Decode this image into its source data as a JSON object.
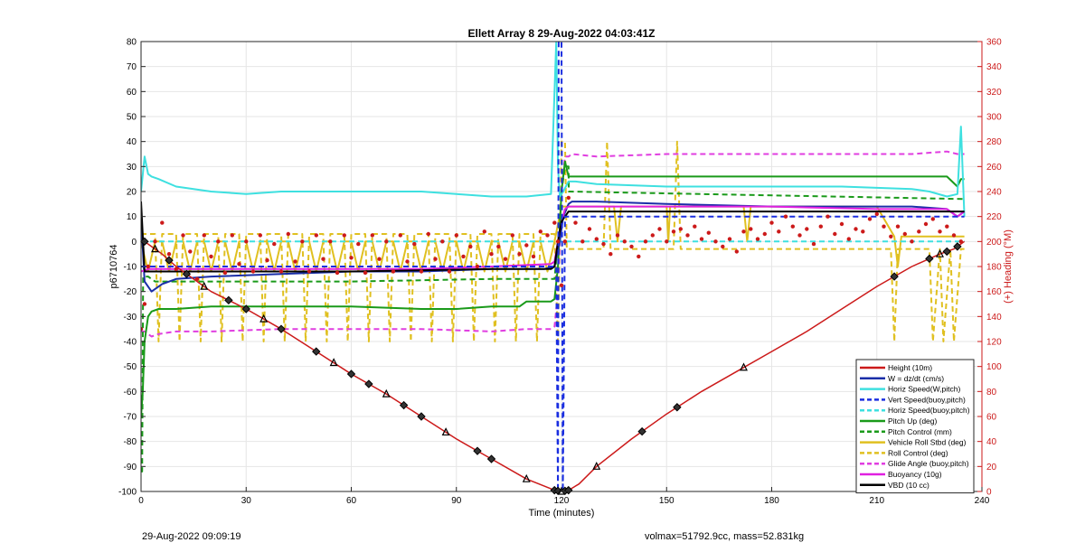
{
  "footer": {
    "timestamp": "29-Aug-2022 09:09:19",
    "summary": "volmax=51792.9cc, mass=52.831kg"
  },
  "chart_data": {
    "type": "line",
    "title": "Ellett Array 8 29-Aug-2022 04:03:41Z",
    "xlabel": "Time (minutes)",
    "ylabel": "p6710764",
    "ylabel_right": "(+) Heading (°M)",
    "xlim": [
      0,
      240
    ],
    "ylim": [
      -100,
      80
    ],
    "ylim_right": [
      0,
      360
    ],
    "xticks": [
      0,
      30,
      60,
      90,
      120,
      150,
      180,
      210,
      240
    ],
    "yticks": [
      -100,
      -90,
      -80,
      -70,
      -60,
      -50,
      -40,
      -30,
      -20,
      -10,
      0,
      10,
      20,
      30,
      40,
      50,
      60,
      70,
      80
    ],
    "yticks_right": [
      0,
      20,
      40,
      60,
      80,
      100,
      120,
      140,
      160,
      180,
      200,
      220,
      240,
      260,
      280,
      300,
      320,
      340,
      360
    ],
    "legend_location": "bottom-right",
    "colors": {
      "axis_left": "#000000",
      "axis_right": "#cc1a1a"
    },
    "series": [
      {
        "name": "Height (10m)",
        "color": "#cc1a1a",
        "style": "solid",
        "x": [
          0,
          1,
          3,
          6,
          10,
          20,
          30,
          40,
          50,
          60,
          70,
          80,
          90,
          100,
          110,
          118,
          120,
          122,
          125,
          130,
          140,
          150,
          160,
          170,
          180,
          190,
          200,
          210,
          220,
          228,
          232,
          235
        ],
        "y": [
          0,
          0,
          -2,
          -5,
          -10,
          -20,
          -27,
          -35,
          -44,
          -53,
          -61,
          -70,
          -79,
          -87,
          -95,
          -99.5,
          -100,
          -99.5,
          -97,
          -90,
          -79,
          -69,
          -60,
          -52,
          -44,
          -36,
          -27,
          -18,
          -10,
          -5,
          -3,
          0
        ]
      },
      {
        "name": "W = dz/dt (cm/s)",
        "color": "#1a2ea8",
        "style": "solid",
        "x": [
          0,
          1,
          3,
          6,
          10,
          20,
          40,
          60,
          80,
          100,
          115,
          118,
          119.5,
          120.5,
          122,
          123,
          130,
          150,
          180,
          200,
          220,
          230,
          233,
          235
        ],
        "y": [
          10,
          -16,
          -20,
          -17,
          -15,
          -14,
          -13,
          -12,
          -12,
          -11,
          -11,
          -10,
          0,
          10,
          15,
          16,
          16,
          15,
          14,
          14,
          14,
          13,
          10,
          12
        ]
      },
      {
        "name": "Horiz Speed(W,pitch)",
        "color": "#3ee0e0",
        "style": "solid",
        "x": [
          0,
          1,
          2,
          3,
          5,
          10,
          20,
          30,
          40,
          60,
          80,
          90,
          100,
          110,
          117,
          118.5,
          119,
          119.5,
          120.5,
          122,
          124,
          130,
          150,
          180,
          200,
          220,
          225,
          230,
          233,
          234,
          235
        ],
        "y": [
          20,
          34,
          27,
          26,
          25,
          22,
          20,
          19,
          20,
          20,
          20,
          19,
          18,
          18,
          19,
          80,
          30,
          18,
          20,
          24,
          24,
          23,
          22,
          22,
          22,
          21,
          20,
          18,
          19,
          46,
          10
        ]
      },
      {
        "name": "Vert Speed(buoy,pitch)",
        "color": "#1a2ee0",
        "style": "dashed",
        "x": [
          0,
          118.5,
          119,
          119.2,
          120,
          120.4,
          121,
          235
        ],
        "y": [
          -10,
          -10,
          -100,
          80,
          80,
          -100,
          10,
          10
        ]
      },
      {
        "name": "Horiz Speed(buoy,pitch)",
        "color": "#3ee0e0",
        "style": "dashed",
        "x": [
          0,
          235
        ],
        "y": [
          0,
          0
        ]
      },
      {
        "name": "Pitch Up (deg)",
        "color": "#1a9a1a",
        "style": "solid",
        "x": [
          0,
          0.5,
          1,
          2,
          3,
          5,
          10,
          20,
          40,
          60,
          80,
          90,
          100,
          108,
          110,
          117,
          118,
          119,
          120,
          121,
          122,
          124,
          130,
          150,
          180,
          200,
          220,
          230,
          233,
          234,
          235
        ],
        "y": [
          -70,
          -60,
          -40,
          -30,
          -28,
          -27,
          -27,
          -26,
          -26,
          -26,
          -27,
          -27,
          -26,
          -26,
          -24,
          -24,
          -23,
          -10,
          20,
          32,
          26,
          26,
          26,
          26,
          26,
          26,
          26,
          26,
          22,
          25,
          25
        ]
      },
      {
        "name": "Pitch Control (mm)",
        "color": "#1a9a1a",
        "style": "dashed",
        "x": [
          0,
          0.3,
          0.6,
          2,
          4,
          6,
          60,
          100,
          117,
          118,
          119,
          120,
          121,
          122,
          122.1,
          235
        ],
        "y": [
          -92,
          -92,
          -14,
          -14,
          -16,
          -16,
          -16,
          -15,
          -15,
          -15,
          0,
          20,
          30,
          30,
          20,
          17
        ]
      },
      {
        "name": "Vehicle Roll Stbd (deg)",
        "color": "#e0c020",
        "style": "solid",
        "x": [
          0,
          2,
          4,
          6,
          8,
          10,
          12,
          14,
          16,
          18,
          20,
          22,
          24,
          26,
          28,
          30,
          32,
          34,
          36,
          38,
          40,
          42,
          44,
          46,
          48,
          50,
          52,
          54,
          56,
          58,
          60,
          62,
          64,
          66,
          68,
          70,
          72,
          74,
          76,
          78,
          80,
          82,
          84,
          86,
          88,
          90,
          92,
          94,
          96,
          98,
          100,
          102,
          104,
          106,
          108,
          110,
          112,
          114,
          116,
          118,
          120,
          122,
          122.5,
          135,
          136,
          137,
          138,
          150,
          150.5,
          151,
          151.5,
          160,
          171,
          172,
          173,
          174,
          185,
          210,
          215,
          216,
          217,
          235
        ],
        "y": [
          0,
          -12,
          0,
          0,
          -12,
          0,
          0,
          -12,
          0,
          0,
          -12,
          0,
          0,
          -12,
          0,
          0,
          -12,
          0,
          0,
          -12,
          0,
          0,
          -12,
          0,
          0,
          -12,
          0,
          0,
          -12,
          0,
          0,
          -12,
          0,
          0,
          -12,
          0,
          0,
          -12,
          0,
          0,
          -12,
          0,
          0,
          -12,
          0,
          0,
          -12,
          0,
          0,
          -12,
          0,
          0,
          -12,
          0,
          0,
          -12,
          0,
          0,
          -12,
          0,
          14,
          14,
          14,
          14,
          0,
          14,
          14,
          14,
          0,
          14,
          14,
          14,
          14,
          14,
          0,
          14,
          14,
          14,
          2,
          -10,
          2,
          2
        ]
      },
      {
        "name": "Roll Control (deg)",
        "color": "#e0c020",
        "style": "dashed",
        "x": [
          0,
          4,
          5,
          6,
          10,
          11,
          12,
          16,
          17,
          18,
          22,
          23,
          24,
          28,
          29,
          30,
          34,
          35,
          36,
          40,
          41,
          42,
          46,
          47,
          48,
          52,
          53,
          54,
          58,
          59,
          60,
          64,
          65,
          66,
          70,
          71,
          72,
          76,
          77,
          78,
          82,
          83,
          84,
          88,
          89,
          90,
          94,
          95,
          96,
          100,
          101,
          102,
          106,
          107,
          108,
          112,
          113,
          114,
          118,
          119,
          120,
          121,
          121.5,
          122,
          132,
          133,
          134,
          152,
          153,
          154,
          185,
          214,
          215,
          216,
          225,
          226,
          228,
          229,
          231,
          232,
          234,
          235
        ],
        "y": [
          3,
          3,
          -40,
          3,
          3,
          -40,
          3,
          3,
          -40,
          3,
          3,
          -40,
          3,
          3,
          -40,
          3,
          3,
          -40,
          3,
          3,
          -40,
          3,
          3,
          -40,
          3,
          3,
          -40,
          3,
          3,
          -40,
          3,
          3,
          -40,
          3,
          3,
          -40,
          3,
          3,
          -40,
          3,
          3,
          -40,
          3,
          3,
          -40,
          3,
          3,
          -40,
          3,
          3,
          -40,
          3,
          3,
          -40,
          3,
          3,
          -40,
          3,
          3,
          -40,
          40,
          40,
          -3,
          -3,
          -3,
          40,
          -3,
          -3,
          40,
          -3,
          -3,
          -3,
          -40,
          -3,
          -3,
          -40,
          -3,
          -40,
          -3,
          -40,
          -3,
          -3
        ]
      },
      {
        "name": "Glide Angle (buoy,pitch)",
        "color": "#e03ee0",
        "style": "dashed",
        "x": [
          0,
          1,
          3,
          5,
          10,
          20,
          40,
          60,
          80,
          100,
          110,
          117,
          118,
          119,
          120,
          121,
          122,
          123,
          130,
          150,
          180,
          200,
          220,
          230,
          233,
          235
        ],
        "y": [
          -36,
          -36,
          -38,
          -37,
          -36,
          -36,
          -35,
          -35,
          -35,
          -36,
          -35,
          -35,
          -34,
          -20,
          20,
          34,
          34,
          35,
          34,
          35,
          35,
          35,
          35,
          36,
          35,
          35
        ]
      },
      {
        "name": "Buoyancy (10g)",
        "color": "#e020e0",
        "style": "solid",
        "x": [
          0,
          2,
          10,
          40,
          60,
          80,
          100,
          117,
          118,
          119,
          120,
          121,
          122,
          130,
          150,
          180,
          210,
          230,
          233,
          235
        ],
        "y": [
          -12,
          -11,
          -11,
          -11,
          -11,
          -11,
          -10,
          -9,
          -8,
          0,
          8,
          13,
          14,
          14,
          14,
          14,
          13,
          13,
          10,
          12
        ]
      },
      {
        "name": "VBD (10 cc)",
        "color": "#000000",
        "style": "solid",
        "x": [
          0,
          1,
          2,
          10,
          60,
          100,
          117,
          118,
          119,
          120,
          121,
          122,
          130,
          180,
          232,
          233,
          235
        ],
        "y": [
          16,
          -12,
          -12,
          -12,
          -12,
          -11,
          -11,
          -10,
          0,
          8,
          10,
          12,
          12,
          12,
          12,
          12,
          12
        ]
      }
    ],
    "heading_series": {
      "name": "(+) Heading (°M)",
      "color": "#cc1a1a",
      "x": [
        0,
        1,
        2,
        4,
        6,
        8,
        10,
        12,
        14,
        16,
        18,
        20,
        22,
        24,
        26,
        28,
        30,
        32,
        34,
        36,
        38,
        40,
        42,
        44,
        46,
        48,
        50,
        52,
        54,
        56,
        58,
        60,
        62,
        64,
        66,
        68,
        70,
        72,
        74,
        76,
        78,
        80,
        82,
        84,
        86,
        88,
        90,
        92,
        94,
        96,
        98,
        100,
        102,
        104,
        106,
        108,
        110,
        112,
        114,
        116,
        118,
        119,
        120,
        121,
        122,
        124,
        126,
        128,
        130,
        132,
        134,
        136,
        138,
        140,
        142,
        144,
        146,
        148,
        150,
        152,
        154,
        156,
        158,
        160,
        162,
        164,
        166,
        168,
        170,
        172,
        174,
        176,
        178,
        180,
        182,
        184,
        186,
        188,
        190,
        192,
        194,
        196,
        198,
        200,
        202,
        204,
        206,
        208,
        210,
        212,
        214,
        216,
        218,
        220,
        222,
        224,
        226,
        228,
        230,
        232,
        234
      ],
      "y": [
        130,
        150,
        180,
        200,
        215,
        190,
        178,
        205,
        192,
        170,
        205,
        188,
        200,
        175,
        205,
        182,
        200,
        176,
        205,
        185,
        198,
        176,
        206,
        184,
        200,
        176,
        205,
        186,
        200,
        175,
        205,
        187,
        198,
        175,
        205,
        186,
        200,
        176,
        205,
        184,
        198,
        176,
        206,
        186,
        200,
        176,
        205,
        188,
        196,
        180,
        208,
        190,
        196,
        186,
        205,
        190,
        197,
        188,
        208,
        205,
        215,
        200,
        165,
        200,
        235,
        215,
        200,
        210,
        202,
        198,
        190,
        205,
        200,
        196,
        188,
        200,
        205,
        210,
        200,
        208,
        210,
        205,
        212,
        202,
        207,
        200,
        196,
        202,
        192,
        208,
        210,
        202,
        206,
        215,
        208,
        220,
        212,
        205,
        210,
        198,
        212,
        220,
        206,
        214,
        202,
        210,
        208,
        218,
        222,
        212,
        204,
        212,
        206,
        200,
        208,
        214,
        218,
        208,
        212,
        205,
        200
      ]
    }
  }
}
